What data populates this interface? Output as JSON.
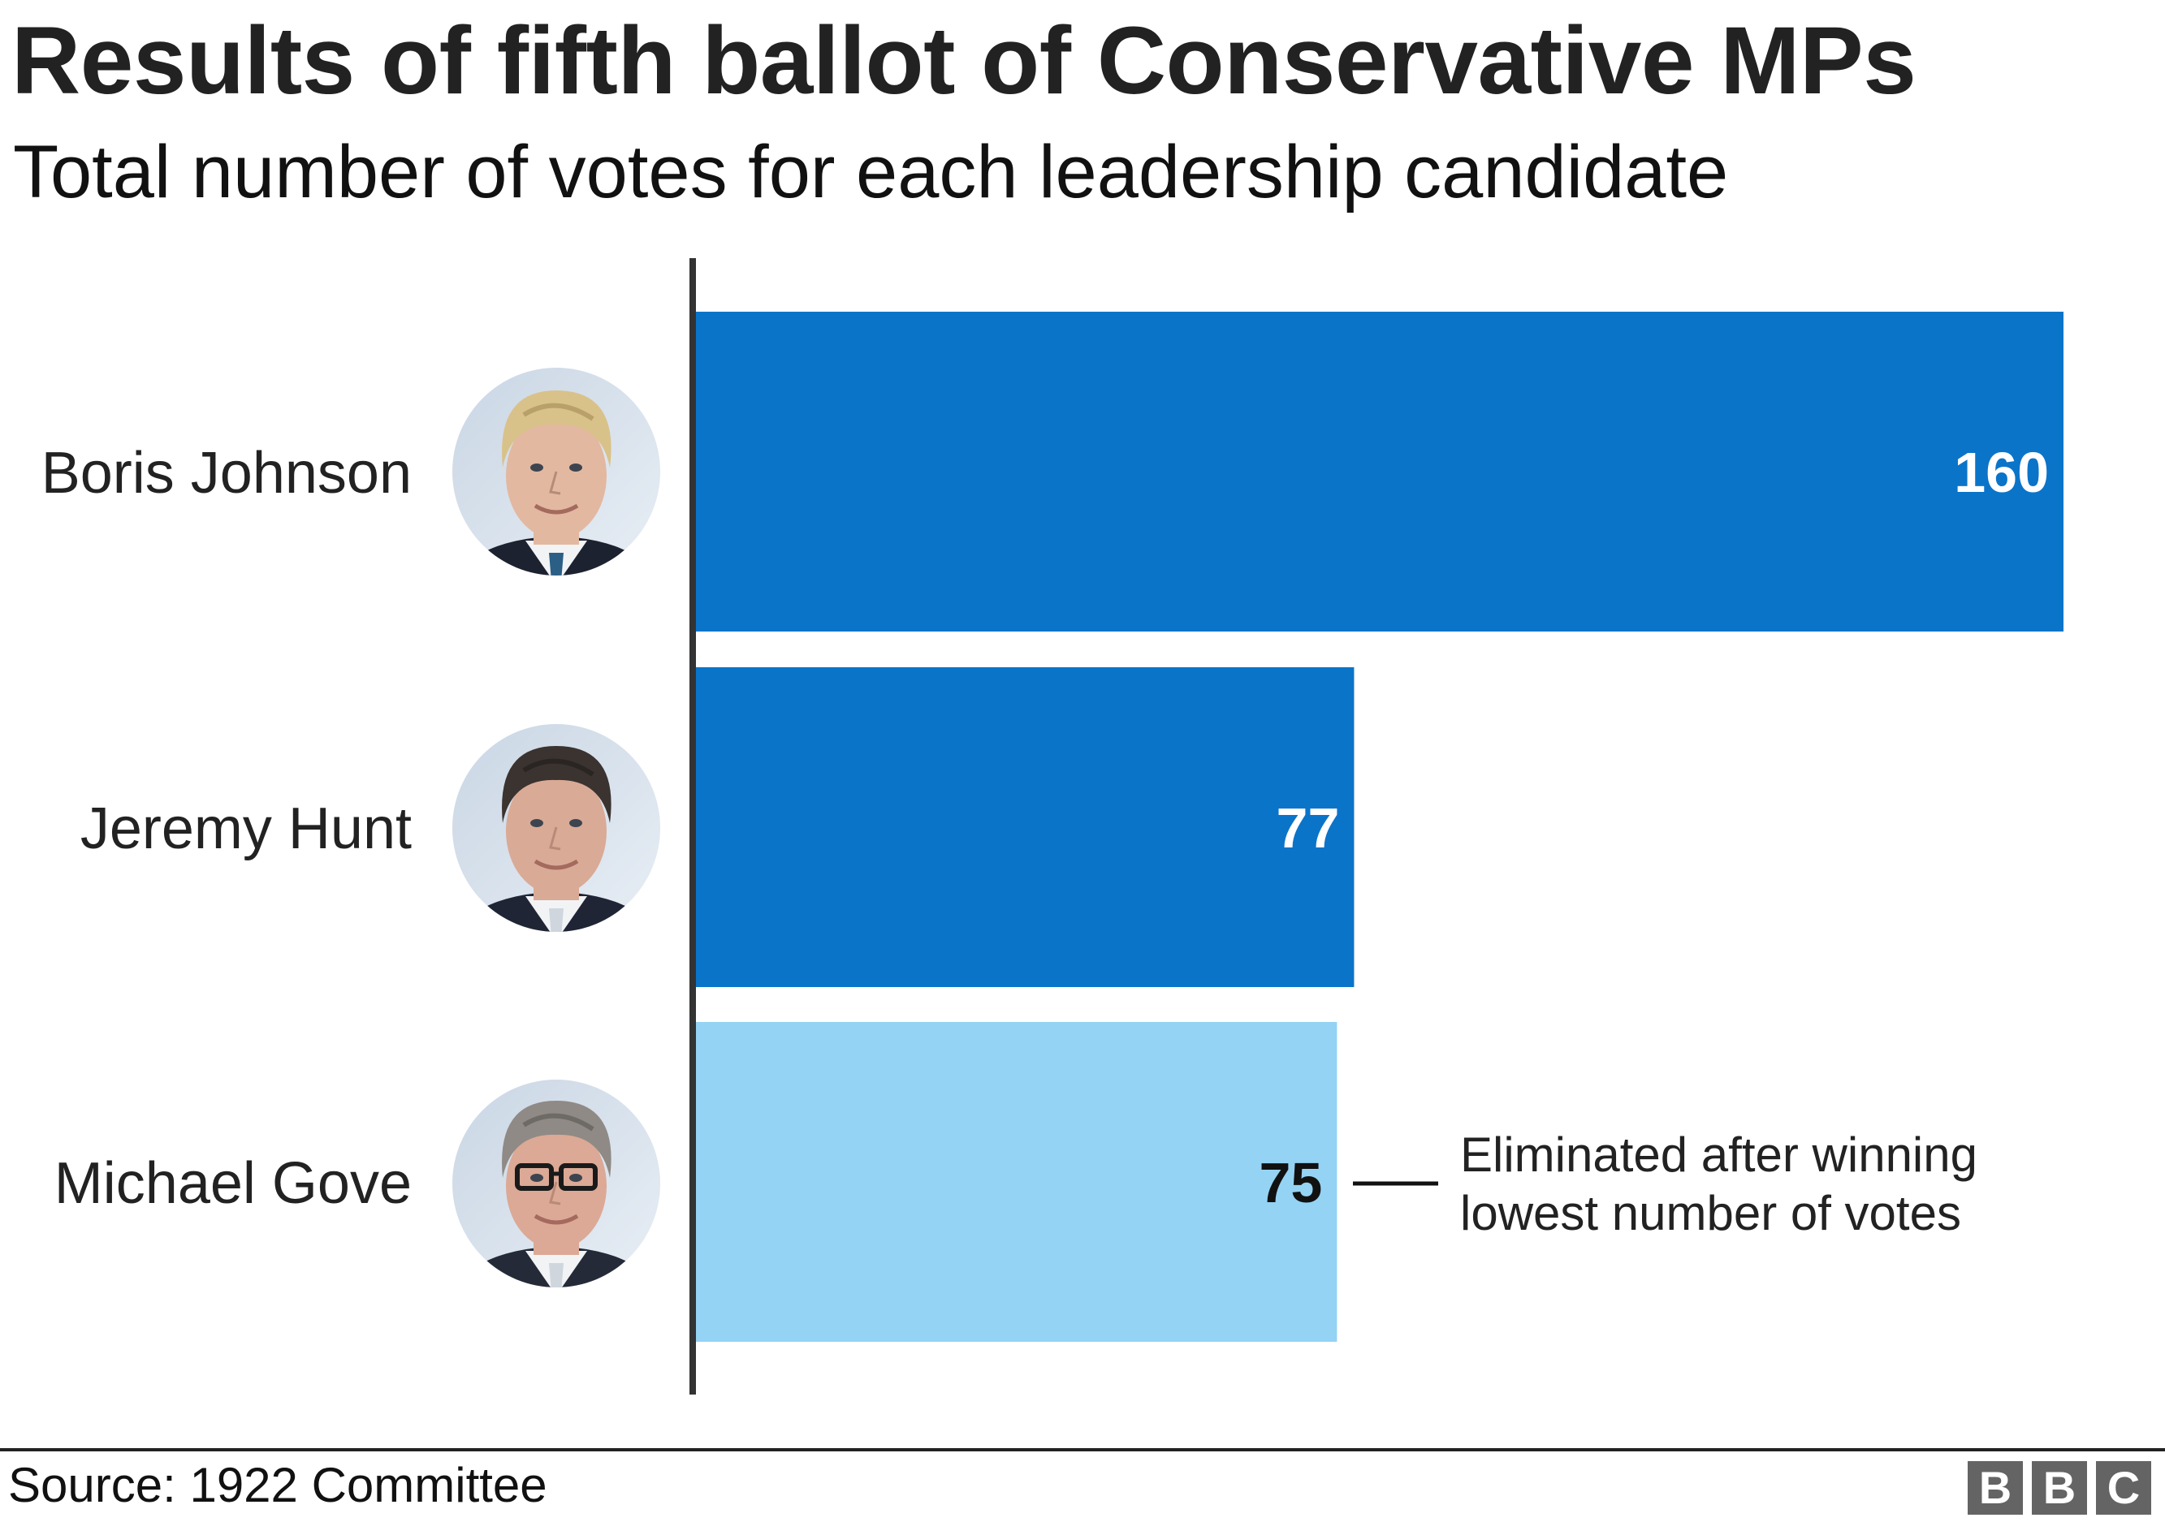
{
  "header": {
    "title": "Results of fifth ballot of Conservative MPs",
    "subtitle": "Total number of votes for each leadership candidate"
  },
  "chart_data": {
    "type": "bar",
    "orientation": "horizontal",
    "title": "Results of fifth ballot of Conservative MPs",
    "subtitle": "Total number of votes for each leadership candidate",
    "xlabel": "",
    "ylabel": "",
    "xlim": [
      0,
      160
    ],
    "grid": false,
    "categories": [
      "Boris Johnson",
      "Jeremy Hunt",
      "Michael Gove"
    ],
    "values": [
      160,
      77,
      75
    ],
    "bar_status": [
      "remaining",
      "remaining",
      "eliminated"
    ],
    "colors": {
      "remaining": "#0a74c9",
      "eliminated": "#94d3f4"
    },
    "value_label_colors": {
      "remaining": "#ffffff",
      "eliminated": "#111111"
    },
    "candidate_photos": [
      "boris-johnson-portrait",
      "jeremy-hunt-portrait",
      "michael-gove-portrait"
    ],
    "annotation": {
      "target": "Michael Gove",
      "lines": [
        "Eliminated after winning",
        "lowest number of votes"
      ]
    }
  },
  "footer": {
    "source": "Source: 1922 Committee",
    "logo_letters": [
      "B",
      "B",
      "C"
    ]
  }
}
